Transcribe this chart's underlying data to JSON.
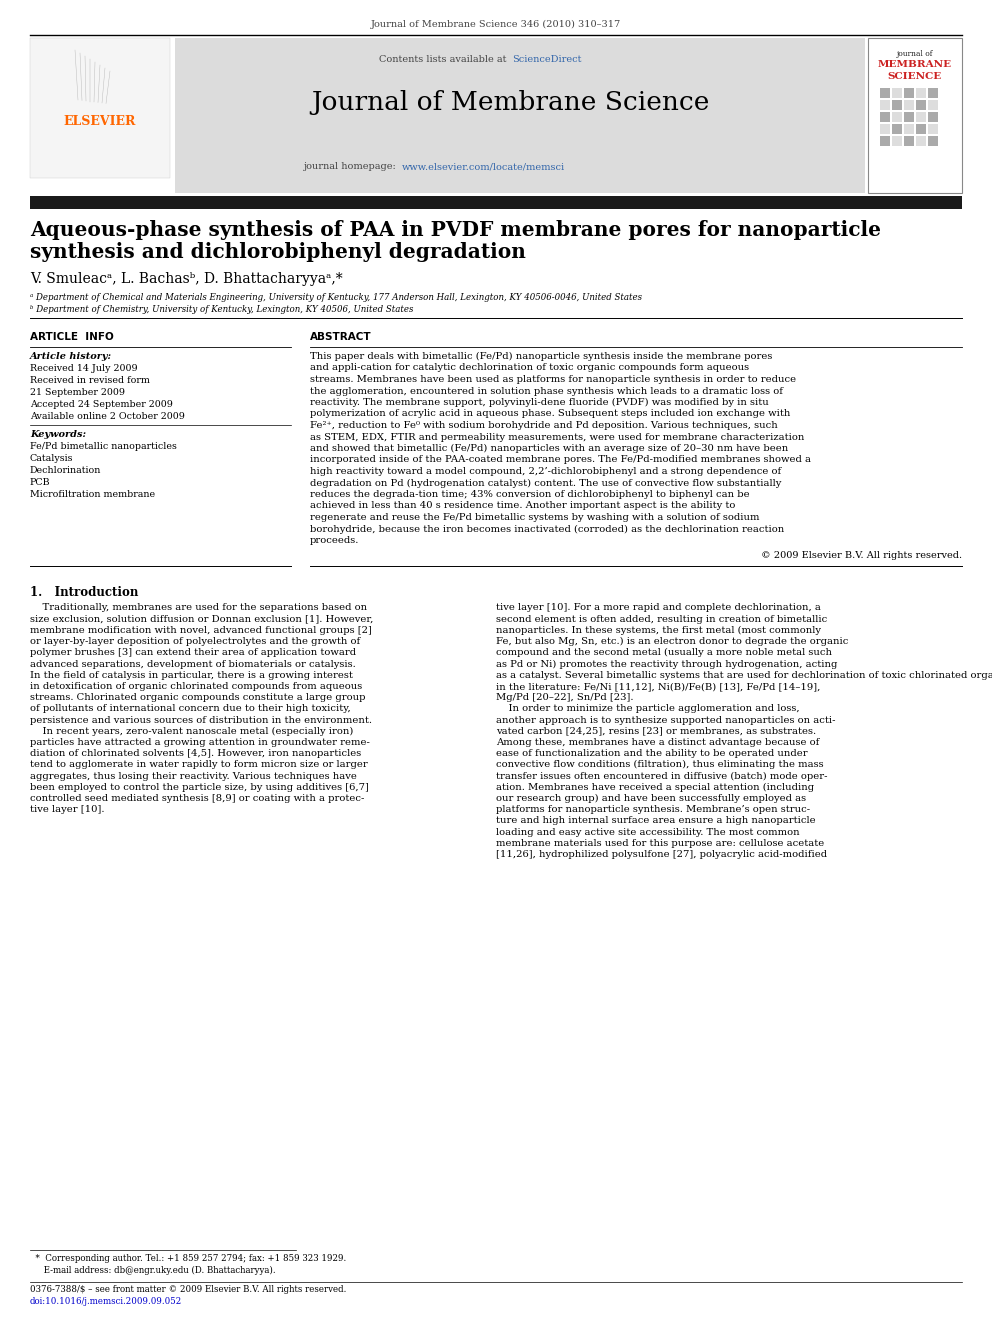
{
  "page_width": 9.92,
  "page_height": 13.23,
  "bg_color": "#ffffff",
  "journal_ref": "Journal of Membrane Science 346 (2010) 310–317",
  "header_bg": "#dcdcdc",
  "contents_text": "Contents lists available at",
  "sciencedirect_text": "ScienceDirect",
  "sciencedirect_color": "#3366aa",
  "journal_title": "Journal of Membrane Science",
  "homepage_label": "journal homepage:",
  "homepage_url": "www.elsevier.com/locate/memsci",
  "homepage_url_color": "#3366aa",
  "article_title_line1": "Aqueous-phase synthesis of PAA in PVDF membrane pores for nanoparticle",
  "article_title_line2": "synthesis and dichlorobiphenyl degradation",
  "authors": "V. Smuleac",
  "authors_full": "V. Smuleacᵃ, L. Bachasᵇ, D. Bhattacharyyaᵃ,*",
  "affil_a": "ᵃ Department of Chemical and Materials Engineering, University of Kentucky, 177 Anderson Hall, Lexington, KY 40506-0046, United States",
  "affil_b": "ᵇ Department of Chemistry, University of Kentucky, Lexington, KY 40506, United States",
  "article_info_title": "ARTICLE  INFO",
  "article_history_label": "Article history:",
  "received": "Received 14 July 2009",
  "received_revised": "Received in revised form",
  "received_revised2": "21 September 2009",
  "accepted": "Accepted 24 September 2009",
  "available": "Available online 2 October 2009",
  "keywords_label": "Keywords:",
  "keywords": [
    "Fe/Pd bimetallic nanoparticles",
    "Catalysis",
    "Dechlorination",
    "PCB",
    "Microfiltration membrane"
  ],
  "abstract_title": "ABSTRACT",
  "abstract_text": "This paper deals with bimetallic (Fe/Pd) nanoparticle synthesis inside the membrane pores and appli-cation for catalytic dechlorination of toxic organic compounds form aqueous streams. Membranes have been used as platforms for nanoparticle synthesis in order to reduce the agglomeration, encountered in solution phase synthesis which leads to a dramatic loss of reactivity. The membrane support, polyvinyli-dene fluoride (PVDF) was modified by in situ polymerization of acrylic acid in aqueous phase. Subsequent steps included ion exchange with Fe²⁺, reduction to Fe⁰ with sodium borohydride and Pd deposition. Various techniques, such as STEM, EDX, FTIR and permeability measurements, were used for membrane characterization and showed that bimetallic (Fe/Pd) nanoparticles with an average size of 20–30 nm have been incorporated inside of the PAA-coated membrane pores. The Fe/Pd-modified membranes showed a high reactivity toward a model compound, 2,2’-dichlorobiphenyl and a strong dependence of degradation on Pd (hydrogenation catalyst) content. The use of convective flow substantially reduces the degrada-tion time; 43% conversion of dichlorobiphenyl to biphenyl can be achieved in less than 40 s residence time. Another important aspect is the ability to regenerate and reuse the Fe/Pd bimetallic systems by washing with a solution of sodium borohydride, because the iron becomes inactivated (corroded) as the dechlorination reaction proceeds.",
  "copyright": "© 2009 Elsevier B.V. All rights reserved.",
  "intro_title": "1.   Introduction",
  "intro_p1_col1": [
    "    Traditionally, membranes are used for the separations based on",
    "size exclusion, solution diffusion or Donnan exclusion [1]. However,",
    "membrane modification with novel, advanced functional groups [2]",
    "or layer-by-layer deposition of polyelectrolytes and the growth of",
    "polymer brushes [3] can extend their area of application toward",
    "advanced separations, development of biomaterials or catalysis.",
    "In the field of catalysis in particular, there is a growing interest",
    "in detoxification of organic chlorinated compounds from aqueous",
    "streams. Chlorinated organic compounds constitute a large group",
    "of pollutants of international concern due to their high toxicity,",
    "persistence and various sources of distribution in the environment.",
    "    In recent years, zero-valent nanoscale metal (especially iron)",
    "particles have attracted a growing attention in groundwater reme-",
    "diation of chlorinated solvents [4,5]. However, iron nanoparticles",
    "tend to agglomerate in water rapidly to form micron size or larger",
    "aggregates, thus losing their reactivity. Various techniques have",
    "been employed to control the particle size, by using additives [6,7]",
    "controlled seed mediated synthesis [8,9] or coating with a protec-",
    "tive layer [10]."
  ],
  "intro_p1_col2": [
    "tive layer [10]. For a more rapid and complete dechlorination, a",
    "second element is often added, resulting in creation of bimetallic",
    "nanoparticles. In these systems, the first metal (most commonly",
    "Fe, but also Mg, Sn, etc.) is an electron donor to degrade the organic",
    "compound and the second metal (usually a more noble metal such",
    "as Pd or Ni) promotes the reactivity through hydrogenation, acting",
    "as a catalyst. Several bimetallic systems that are used for dechlorination of toxic chlorinated organic compounds, have been reported",
    "in the literature: Fe/Ni [11,12], Ni(B)/Fe(B) [13], Fe/Pd [14–19],",
    "Mg/Pd [20–22], Sn/Pd [23].",
    "    In order to minimize the particle agglomeration and loss,",
    "another approach is to synthesize supported nanoparticles on acti-",
    "vated carbon [24,25], resins [23] or membranes, as substrates.",
    "Among these, membranes have a distinct advantage because of",
    "ease of functionalization and the ability to be operated under",
    "convective flow conditions (filtration), thus eliminating the mass",
    "transfer issues often encountered in diffusive (batch) mode oper-",
    "ation. Membranes have received a special attention (including",
    "our research group) and have been successfully employed as",
    "platforms for nanoparticle synthesis. Membrane’s open struc-",
    "ture and high internal surface area ensure a high nanoparticle",
    "loading and easy active site accessibility. The most common",
    "membrane materials used for this purpose are: cellulose acetate",
    "[11,26], hydrophilized polysulfone [27], polyacrylic acid-modified"
  ],
  "footnote_line1": "  *  Corresponding author. Tel.: +1 859 257 2794; fax: +1 859 323 1929.",
  "footnote_line2": "     E-mail address: db@engr.uky.edu (D. Bhattacharyya).",
  "footer_issn": "0376-7388/$ – see front matter © 2009 Elsevier B.V. All rights reserved.",
  "footer_doi": "doi:10.1016/j.memsci.2009.09.052",
  "dark_bar_color": "#1a1a1a",
  "border_color": "#000000",
  "elsevier_color": "#ff6600"
}
